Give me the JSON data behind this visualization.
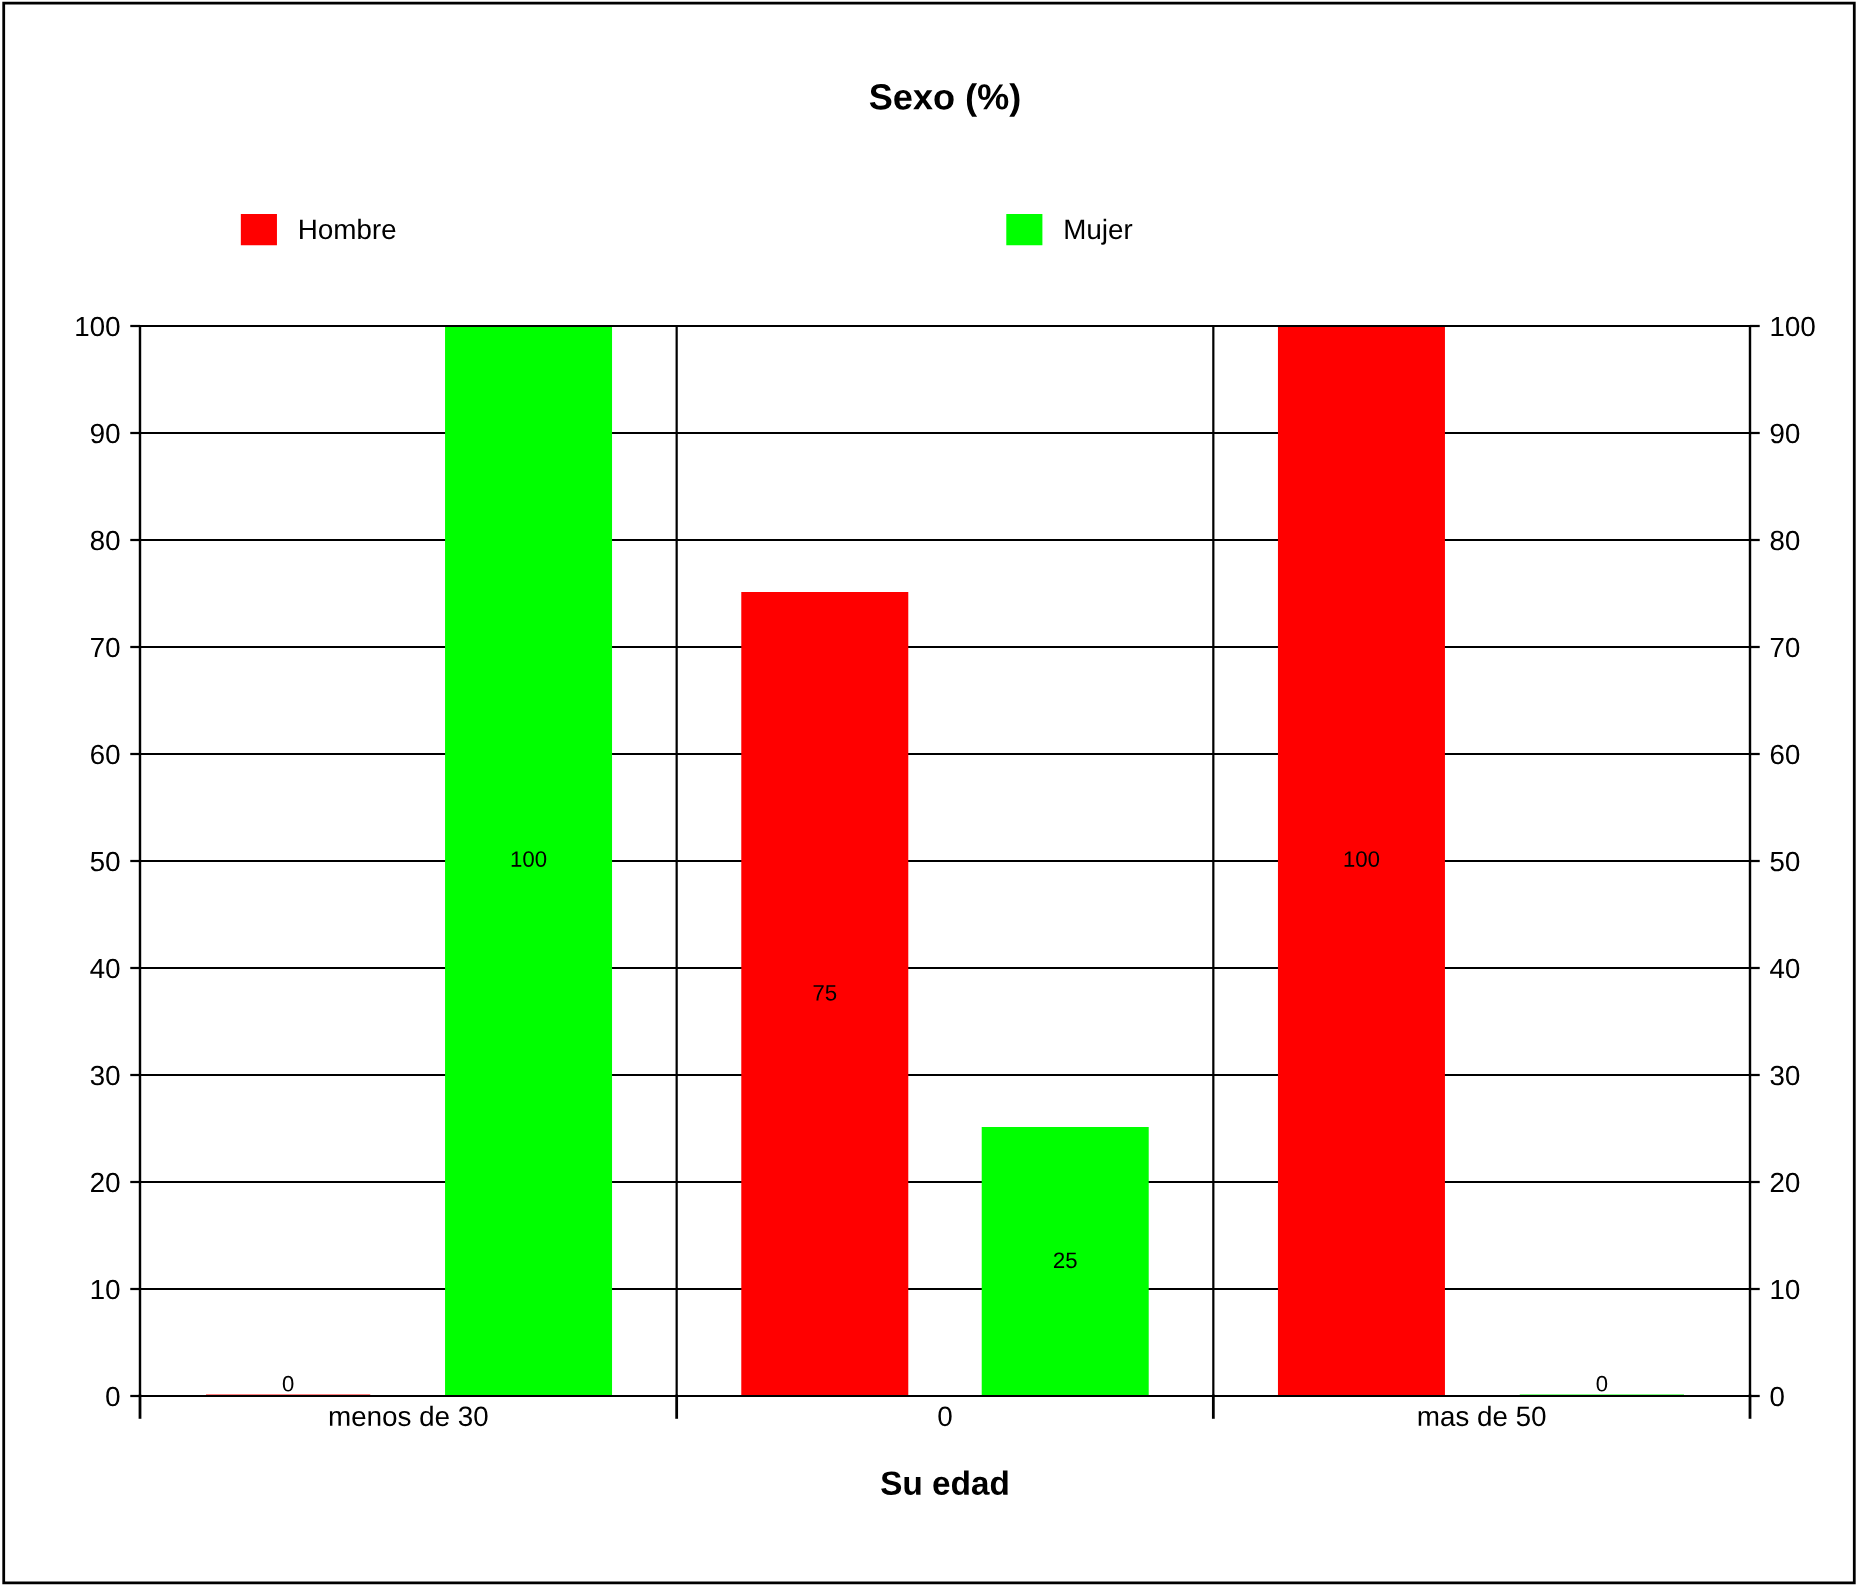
{
  "chart_data": {
    "type": "bar",
    "title": "Sexo (%)",
    "xlabel": "Su edad",
    "categories": [
      "menos de 30",
      "0",
      "mas de 50"
    ],
    "series": [
      {
        "name": "Hombre",
        "color": "#ff0000",
        "values": [
          0,
          75,
          100
        ]
      },
      {
        "name": "Mujer",
        "color": "#00ff00",
        "values": [
          100,
          25,
          0
        ]
      }
    ],
    "ylim": [
      0,
      100
    ],
    "yticks": [
      0,
      10,
      20,
      30,
      40,
      50,
      60,
      70,
      80,
      90,
      100
    ],
    "y2lim": [
      0,
      100
    ],
    "y2ticks": [
      0,
      10,
      20,
      30,
      40,
      50,
      60,
      70,
      80,
      90,
      100
    ],
    "grid": true,
    "legend": "top",
    "data_labels": true
  }
}
